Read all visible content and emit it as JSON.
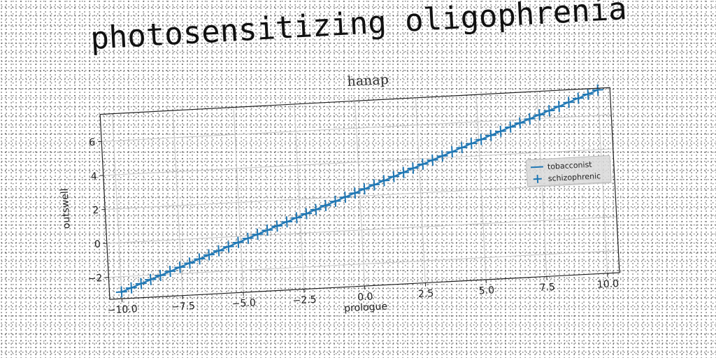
{
  "figure_title": "photosensitizing oligophrenia",
  "chart_data": {
    "type": "line",
    "title": "hanap",
    "xlabel": "prologue",
    "ylabel": "outswell",
    "xlim": [
      -10.5,
      10.5
    ],
    "ylim": [
      -3.3,
      7.6
    ],
    "xticks": [
      -10.0,
      -7.5,
      -5.0,
      -2.5,
      0.0,
      2.5,
      5.0,
      7.5,
      10.0
    ],
    "xtick_labels": [
      "−10.0",
      "−7.5",
      "−5.0",
      "−2.5",
      "0.0",
      "2.5",
      "5.0",
      "7.5",
      "10.0"
    ],
    "yticks": [
      -2,
      0,
      2,
      4,
      6
    ],
    "ytick_labels": [
      "−2",
      "0",
      "2",
      "4",
      "6"
    ],
    "grid": true,
    "legend_position": "center-right",
    "series": [
      {
        "name": "tobacconist",
        "style": "line",
        "color": "#1f77b4",
        "x": [
          -10.0,
          10.0
        ],
        "y": [
          -2.9,
          7.5
        ]
      },
      {
        "name": "schizophrenic",
        "style": "plus-markers",
        "color": "#1f77b4",
        "x": [
          -10.0,
          -9.59,
          -9.18,
          -8.78,
          -8.37,
          -7.96,
          -7.55,
          -7.14,
          -6.73,
          -6.33,
          -5.92,
          -5.51,
          -5.1,
          -4.69,
          -4.29,
          -3.88,
          -3.47,
          -3.06,
          -2.65,
          -2.24,
          -1.84,
          -1.43,
          -1.02,
          -0.61,
          -0.2,
          0.2,
          0.61,
          1.02,
          1.43,
          1.84,
          2.24,
          2.65,
          3.06,
          3.47,
          3.88,
          4.29,
          4.69,
          5.1,
          5.51,
          5.92,
          6.33,
          6.73,
          7.14,
          7.55,
          7.96,
          8.37,
          8.78,
          9.18,
          9.59,
          10.0
        ],
        "y": [
          -2.9,
          -2.69,
          -2.47,
          -2.26,
          -2.05,
          -1.84,
          -1.63,
          -1.41,
          -1.2,
          -0.99,
          -0.78,
          -0.57,
          -0.35,
          -0.14,
          0.07,
          0.28,
          0.49,
          0.71,
          0.92,
          1.13,
          1.34,
          1.55,
          1.77,
          1.98,
          2.19,
          2.41,
          2.62,
          2.83,
          3.04,
          3.25,
          3.47,
          3.68,
          3.89,
          4.1,
          4.31,
          4.53,
          4.74,
          4.95,
          5.16,
          5.37,
          5.59,
          5.8,
          6.01,
          6.22,
          6.43,
          6.65,
          6.86,
          7.07,
          7.28,
          7.5
        ]
      }
    ]
  }
}
